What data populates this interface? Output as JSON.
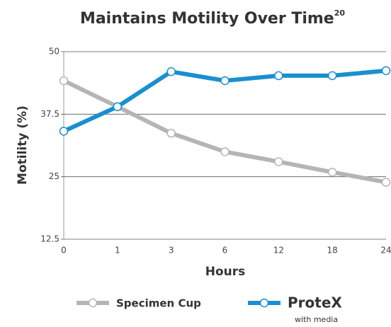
{
  "chart_data": {
    "type": "line",
    "title": "Maintains Motility Over Time",
    "title_superscript": "20",
    "x_label": "Hours",
    "y_label": "Motility (%)",
    "categories": [
      "0",
      "1",
      "3",
      "6",
      "12",
      "18",
      "24"
    ],
    "series": [
      {
        "name": "Specimen Cup",
        "color": "#b5b5b5",
        "values": [
          44.2,
          39,
          33.7,
          30,
          28,
          25.9,
          23.9
        ]
      },
      {
        "name": "ProteX",
        "note": "with media",
        "color": "#1a8fd0",
        "values": [
          34.1,
          39,
          46,
          44.2,
          45.2,
          45.2,
          46.2
        ]
      }
    ],
    "ylim": [
      12.5,
      50
    ],
    "yticks": [
      12.5,
      25,
      37.5,
      50
    ],
    "grid": true
  }
}
